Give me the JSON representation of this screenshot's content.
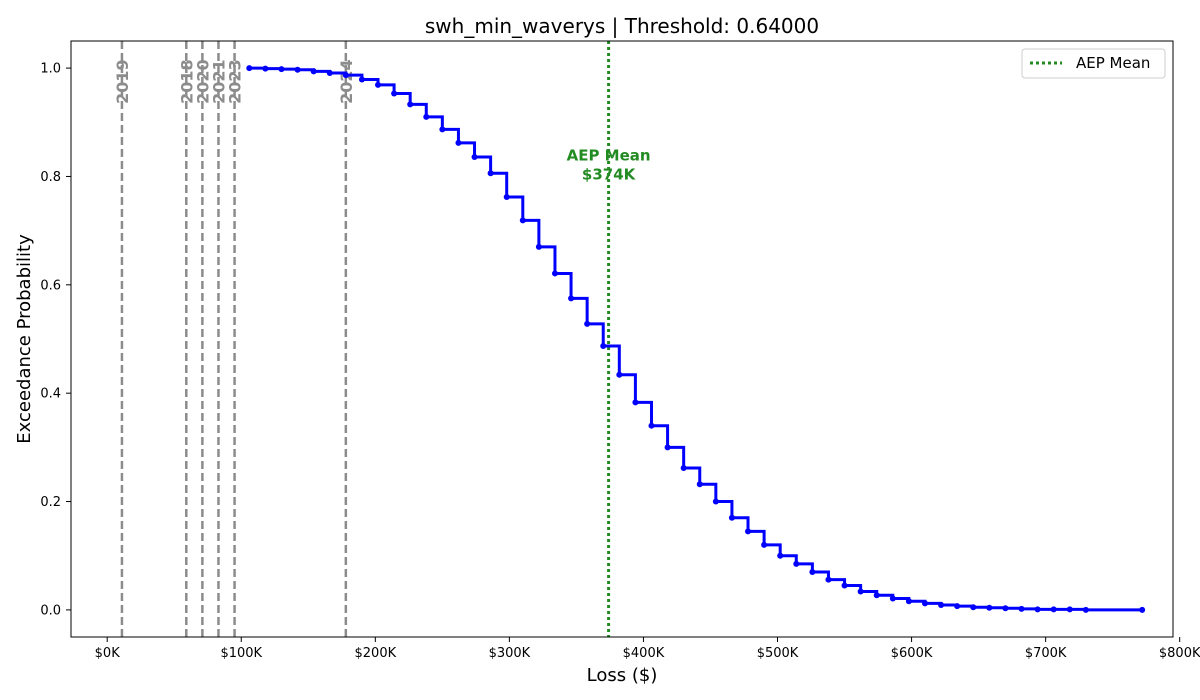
{
  "chart_data": {
    "type": "line",
    "title": "swh_min_waverys | Threshold: 0.64000",
    "xlabel": "Loss ($)",
    "ylabel": "Exceedance Probability",
    "xlim": [
      -27000,
      795000
    ],
    "ylim": [
      -0.05,
      1.05
    ],
    "x_ticks": [
      {
        "value": 0,
        "label": "$0K"
      },
      {
        "value": 100000,
        "label": "$100K"
      },
      {
        "value": 200000,
        "label": "$200K"
      },
      {
        "value": 300000,
        "label": "$300K"
      },
      {
        "value": 400000,
        "label": "$400K"
      },
      {
        "value": 500000,
        "label": "$500K"
      },
      {
        "value": 600000,
        "label": "$600K"
      },
      {
        "value": 700000,
        "label": "$700K"
      },
      {
        "value": 800000,
        "label": "$800K"
      }
    ],
    "y_ticks": [
      {
        "value": 0.0,
        "label": "0.0"
      },
      {
        "value": 0.2,
        "label": "0.2"
      },
      {
        "value": 0.4,
        "label": "0.4"
      },
      {
        "value": 0.6,
        "label": "0.6"
      },
      {
        "value": 0.8,
        "label": "0.8"
      },
      {
        "value": 1.0,
        "label": "1.0"
      }
    ],
    "series": [
      {
        "name": "",
        "color": "#0000ff",
        "step": true,
        "points": [
          [
            106000,
            1.0
          ],
          [
            118000,
            0.999
          ],
          [
            130000,
            0.998
          ],
          [
            142000,
            0.997
          ],
          [
            154000,
            0.994
          ],
          [
            166000,
            0.991
          ],
          [
            178000,
            0.987
          ],
          [
            190000,
            0.979
          ],
          [
            202000,
            0.969
          ],
          [
            214000,
            0.953
          ],
          [
            226000,
            0.933
          ],
          [
            238000,
            0.91
          ],
          [
            250000,
            0.887
          ],
          [
            262000,
            0.862
          ],
          [
            274000,
            0.836
          ],
          [
            286000,
            0.806
          ],
          [
            298000,
            0.762
          ],
          [
            310000,
            0.719
          ],
          [
            322000,
            0.67
          ],
          [
            334000,
            0.621
          ],
          [
            346000,
            0.575
          ],
          [
            358000,
            0.528
          ],
          [
            370000,
            0.487
          ],
          [
            382000,
            0.434
          ],
          [
            394000,
            0.383
          ],
          [
            406000,
            0.34
          ],
          [
            418000,
            0.3
          ],
          [
            430000,
            0.262
          ],
          [
            442000,
            0.232
          ],
          [
            454000,
            0.2
          ],
          [
            466000,
            0.17
          ],
          [
            478000,
            0.145
          ],
          [
            490000,
            0.12
          ],
          [
            502000,
            0.1
          ],
          [
            514000,
            0.085
          ],
          [
            526000,
            0.07
          ],
          [
            538000,
            0.056
          ],
          [
            550000,
            0.045
          ],
          [
            562000,
            0.034
          ],
          [
            574000,
            0.027
          ],
          [
            586000,
            0.021
          ],
          [
            598000,
            0.016
          ],
          [
            610000,
            0.012
          ],
          [
            622000,
            0.009
          ],
          [
            634000,
            0.007
          ],
          [
            646000,
            0.005
          ],
          [
            658000,
            0.004
          ],
          [
            670000,
            0.003
          ],
          [
            682000,
            0.002
          ],
          [
            694000,
            0.001
          ],
          [
            706000,
            0.001
          ],
          [
            718000,
            0.001
          ],
          [
            730000,
            0.0
          ],
          [
            772000,
            0.0
          ]
        ]
      }
    ],
    "year_markers": [
      {
        "label": "2019",
        "x": 11000
      },
      {
        "label": "2018",
        "x": 59000
      },
      {
        "label": "2020",
        "x": 71000
      },
      {
        "label": "2021",
        "x": 83000
      },
      {
        "label": "2023",
        "x": 95000
      },
      {
        "label": "2024",
        "x": 178000
      }
    ],
    "aep_mean": {
      "x": 374000,
      "annotation_line1": "AEP Mean",
      "annotation_line2": "$374K",
      "annotation_y": 0.8,
      "color": "#228b22"
    },
    "legend": {
      "position": "upper right",
      "entries": [
        {
          "label": "AEP Mean",
          "color": "#228b22",
          "style": "dotted"
        }
      ]
    },
    "grid": false
  }
}
